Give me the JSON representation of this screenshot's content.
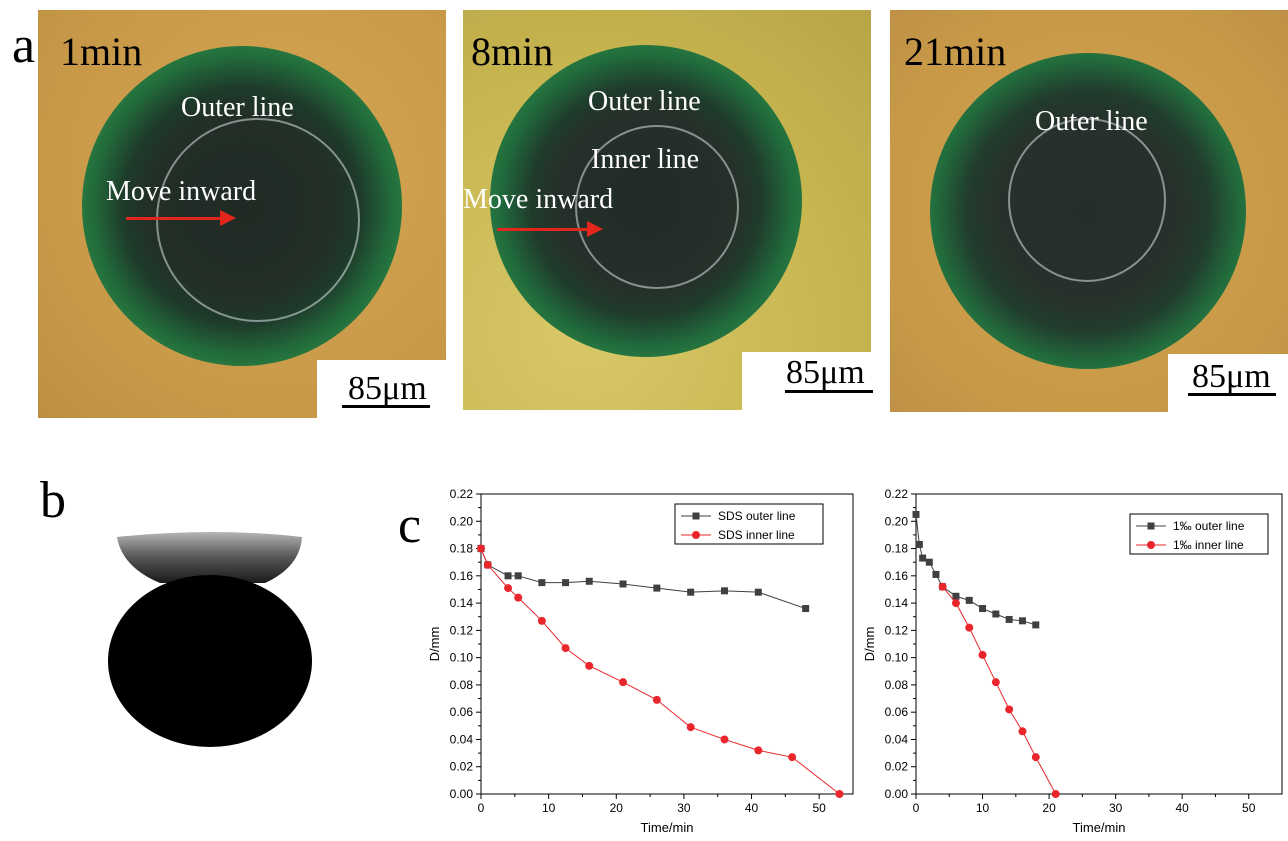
{
  "panels": {
    "a": "a",
    "b": "b",
    "c": "c"
  },
  "photos": [
    {
      "time": "1min",
      "labels": [
        "Outer line",
        "Move inward"
      ],
      "scale": "85μm"
    },
    {
      "time": "8min",
      "labels": [
        "Outer line",
        "Inner line",
        "Move inward"
      ],
      "scale": "85μm"
    },
    {
      "time": "21min",
      "labels": [
        "Outer line"
      ],
      "scale": "85μm"
    }
  ],
  "colors": {
    "background_photo": "#c99a48",
    "ring_green": "#2f8a46",
    "center_dark": "#243028",
    "arrow": "#e3261c",
    "outer_series": "#404040",
    "inner_series": "#e8262c"
  },
  "chart_data": [
    {
      "type": "line",
      "xlabel": "Time/min",
      "ylabel": "D/mm",
      "xlim": [
        0,
        55
      ],
      "ylim": [
        0,
        0.22
      ],
      "xticks": [
        0,
        10,
        20,
        30,
        40,
        50
      ],
      "yticks": [
        0.0,
        0.02,
        0.04,
        0.06,
        0.08,
        0.1,
        0.12,
        0.14,
        0.16,
        0.18,
        0.2,
        0.22
      ],
      "legend_position": "top-right",
      "series": [
        {
          "name": "SDS outer line",
          "marker": "square",
          "color": "#404040",
          "x": [
            0,
            1,
            4,
            5.5,
            9,
            12.5,
            16,
            21,
            26,
            31,
            36,
            41,
            48
          ],
          "y": [
            0.18,
            0.168,
            0.16,
            0.16,
            0.155,
            0.155,
            0.156,
            0.154,
            0.151,
            0.148,
            0.149,
            0.148,
            0.136
          ]
        },
        {
          "name": "SDS inner line",
          "marker": "circle",
          "color": "#e8262c",
          "x": [
            0,
            1,
            4,
            5.5,
            9,
            12.5,
            16,
            21,
            26,
            31,
            36,
            41,
            46,
            53
          ],
          "y": [
            0.18,
            0.168,
            0.151,
            0.144,
            0.127,
            0.107,
            0.094,
            0.082,
            0.069,
            0.049,
            0.04,
            0.032,
            0.027,
            0.0
          ]
        }
      ]
    },
    {
      "type": "line",
      "xlabel": "Time/min",
      "ylabel": "D/mm",
      "xlim": [
        0,
        55
      ],
      "ylim": [
        0,
        0.22
      ],
      "xticks": [
        0,
        10,
        20,
        30,
        40,
        50
      ],
      "yticks": [
        0.0,
        0.02,
        0.04,
        0.06,
        0.08,
        0.1,
        0.12,
        0.14,
        0.16,
        0.18,
        0.2,
        0.22
      ],
      "legend_position": "top-right",
      "series": [
        {
          "name": "1‰ outer line",
          "marker": "square",
          "color": "#404040",
          "x": [
            0,
            0.5,
            1,
            2,
            3,
            4,
            6,
            8,
            10,
            12,
            14,
            16,
            18
          ],
          "y": [
            0.205,
            0.183,
            0.173,
            0.17,
            0.161,
            0.152,
            0.145,
            0.142,
            0.136,
            0.132,
            0.128,
            0.127,
            0.124
          ]
        },
        {
          "name": "1‰ inner line",
          "marker": "circle",
          "color": "#e8262c",
          "x": [
            4,
            6,
            8,
            10,
            12,
            14,
            16,
            18,
            21
          ],
          "y": [
            0.152,
            0.14,
            0.122,
            0.102,
            0.082,
            0.062,
            0.046,
            0.027,
            0.0
          ]
        }
      ]
    }
  ]
}
